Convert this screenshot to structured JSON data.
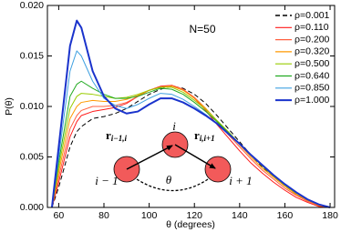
{
  "chart_data": {
    "type": "line",
    "x_label": "θ (degrees)",
    "y_label": "P(θ)",
    "annotations": {
      "n": "N=50",
      "node_i": "i",
      "node_prev": "i − 1",
      "node_next": "i + 1",
      "angle": "θ",
      "bond_prev": "r",
      "bond_prev_sub": "i−1,i",
      "bond_next": "r",
      "bond_next_sub": "i,i+1"
    },
    "xlim": [
      55,
      182
    ],
    "ylim": [
      0,
      0.02
    ],
    "xticks": [
      60,
      80,
      100,
      120,
      140,
      160,
      180
    ],
    "yticks": [
      {
        "value": 0,
        "label": "0.000"
      },
      {
        "value": 0.005,
        "label": "0.005"
      },
      {
        "value": 0.01,
        "label": "0.010"
      },
      {
        "value": 0.015,
        "label": "0.015"
      },
      {
        "value": 0.02,
        "label": "0.020"
      }
    ],
    "legend": "top-right",
    "x": [
      57,
      60,
      65,
      68,
      70,
      75,
      80,
      85,
      90,
      95,
      100,
      105,
      110,
      115,
      120,
      125,
      130,
      135,
      140,
      145,
      150,
      155,
      160,
      165,
      170,
      175,
      180
    ],
    "series": [
      {
        "name": "ρ=0.001",
        "color": "#000000",
        "dashed": true,
        "values": [
          0,
          0.002,
          0.006,
          0.0075,
          0.008,
          0.0088,
          0.009,
          0.0093,
          0.0098,
          0.0105,
          0.0112,
          0.0117,
          0.012,
          0.0118,
          0.0112,
          0.0103,
          0.0091,
          0.0078,
          0.0065,
          0.0052,
          0.004,
          0.003,
          0.0021,
          0.0013,
          0.0007,
          0.0002,
          0
        ]
      },
      {
        "name": "ρ=0.110",
        "color": "#ff1a1a",
        "values": [
          0,
          0.0025,
          0.007,
          0.0085,
          0.0091,
          0.0095,
          0.0097,
          0.0099,
          0.0103,
          0.011,
          0.0116,
          0.012,
          0.0121,
          0.0117,
          0.0108,
          0.0096,
          0.0082,
          0.0069,
          0.0056,
          0.0044,
          0.0034,
          0.0025,
          0.0017,
          0.001,
          0.0005,
          0.0001,
          0
        ]
      },
      {
        "name": "ρ=0.200",
        "color": "#ff6040",
        "values": [
          0,
          0.003,
          0.0078,
          0.0091,
          0.0096,
          0.01,
          0.01,
          0.0101,
          0.0104,
          0.011,
          0.0116,
          0.0119,
          0.0121,
          0.0117,
          0.0109,
          0.0098,
          0.0085,
          0.0072,
          0.006,
          0.0048,
          0.0037,
          0.0028,
          0.0019,
          0.0012,
          0.0006,
          0.0002,
          0
        ]
      },
      {
        "name": "ρ=0.320",
        "color": "#ff9900",
        "values": [
          0,
          0.0035,
          0.0088,
          0.01,
          0.0104,
          0.0106,
          0.0105,
          0.0105,
          0.0107,
          0.0111,
          0.0116,
          0.0119,
          0.012,
          0.0116,
          0.0108,
          0.0098,
          0.0086,
          0.0074,
          0.0062,
          0.005,
          0.0039,
          0.003,
          0.0021,
          0.0013,
          0.0007,
          0.0002,
          0
        ]
      },
      {
        "name": "ρ=0.500",
        "color": "#99cc00",
        "values": [
          0,
          0.004,
          0.0098,
          0.011,
          0.0113,
          0.0112,
          0.011,
          0.0108,
          0.0109,
          0.0112,
          0.0116,
          0.0119,
          0.0119,
          0.0114,
          0.0106,
          0.0097,
          0.0086,
          0.0075,
          0.0063,
          0.0052,
          0.0041,
          0.0031,
          0.0022,
          0.0014,
          0.0008,
          0.0003,
          0
        ]
      },
      {
        "name": "ρ=0.640",
        "color": "#22aa22",
        "values": [
          0,
          0.0045,
          0.011,
          0.0122,
          0.0125,
          0.0118,
          0.0112,
          0.0108,
          0.0108,
          0.011,
          0.0114,
          0.0118,
          0.0117,
          0.0112,
          0.0104,
          0.0095,
          0.0085,
          0.0074,
          0.0063,
          0.0052,
          0.0042,
          0.0032,
          0.0023,
          0.0015,
          0.0008,
          0.0003,
          0
        ]
      },
      {
        "name": "ρ=0.850",
        "color": "#3fa0e0",
        "values": [
          0,
          0.005,
          0.0135,
          0.0155,
          0.015,
          0.0125,
          0.0108,
          0.0101,
          0.0098,
          0.0102,
          0.0108,
          0.0113,
          0.0112,
          0.0107,
          0.01,
          0.0092,
          0.0083,
          0.0073,
          0.0063,
          0.0052,
          0.0042,
          0.0032,
          0.0023,
          0.0015,
          0.0008,
          0.0003,
          0
        ]
      },
      {
        "name": "ρ=1.000",
        "color": "#1a33cc",
        "width": 2,
        "values": [
          0,
          0.006,
          0.016,
          0.0185,
          0.0178,
          0.0135,
          0.011,
          0.0098,
          0.0093,
          0.0095,
          0.0102,
          0.0108,
          0.0108,
          0.0104,
          0.0098,
          0.0091,
          0.0083,
          0.0073,
          0.0063,
          0.0052,
          0.0042,
          0.0032,
          0.0023,
          0.0015,
          0.0008,
          0.0003,
          0
        ]
      }
    ]
  }
}
